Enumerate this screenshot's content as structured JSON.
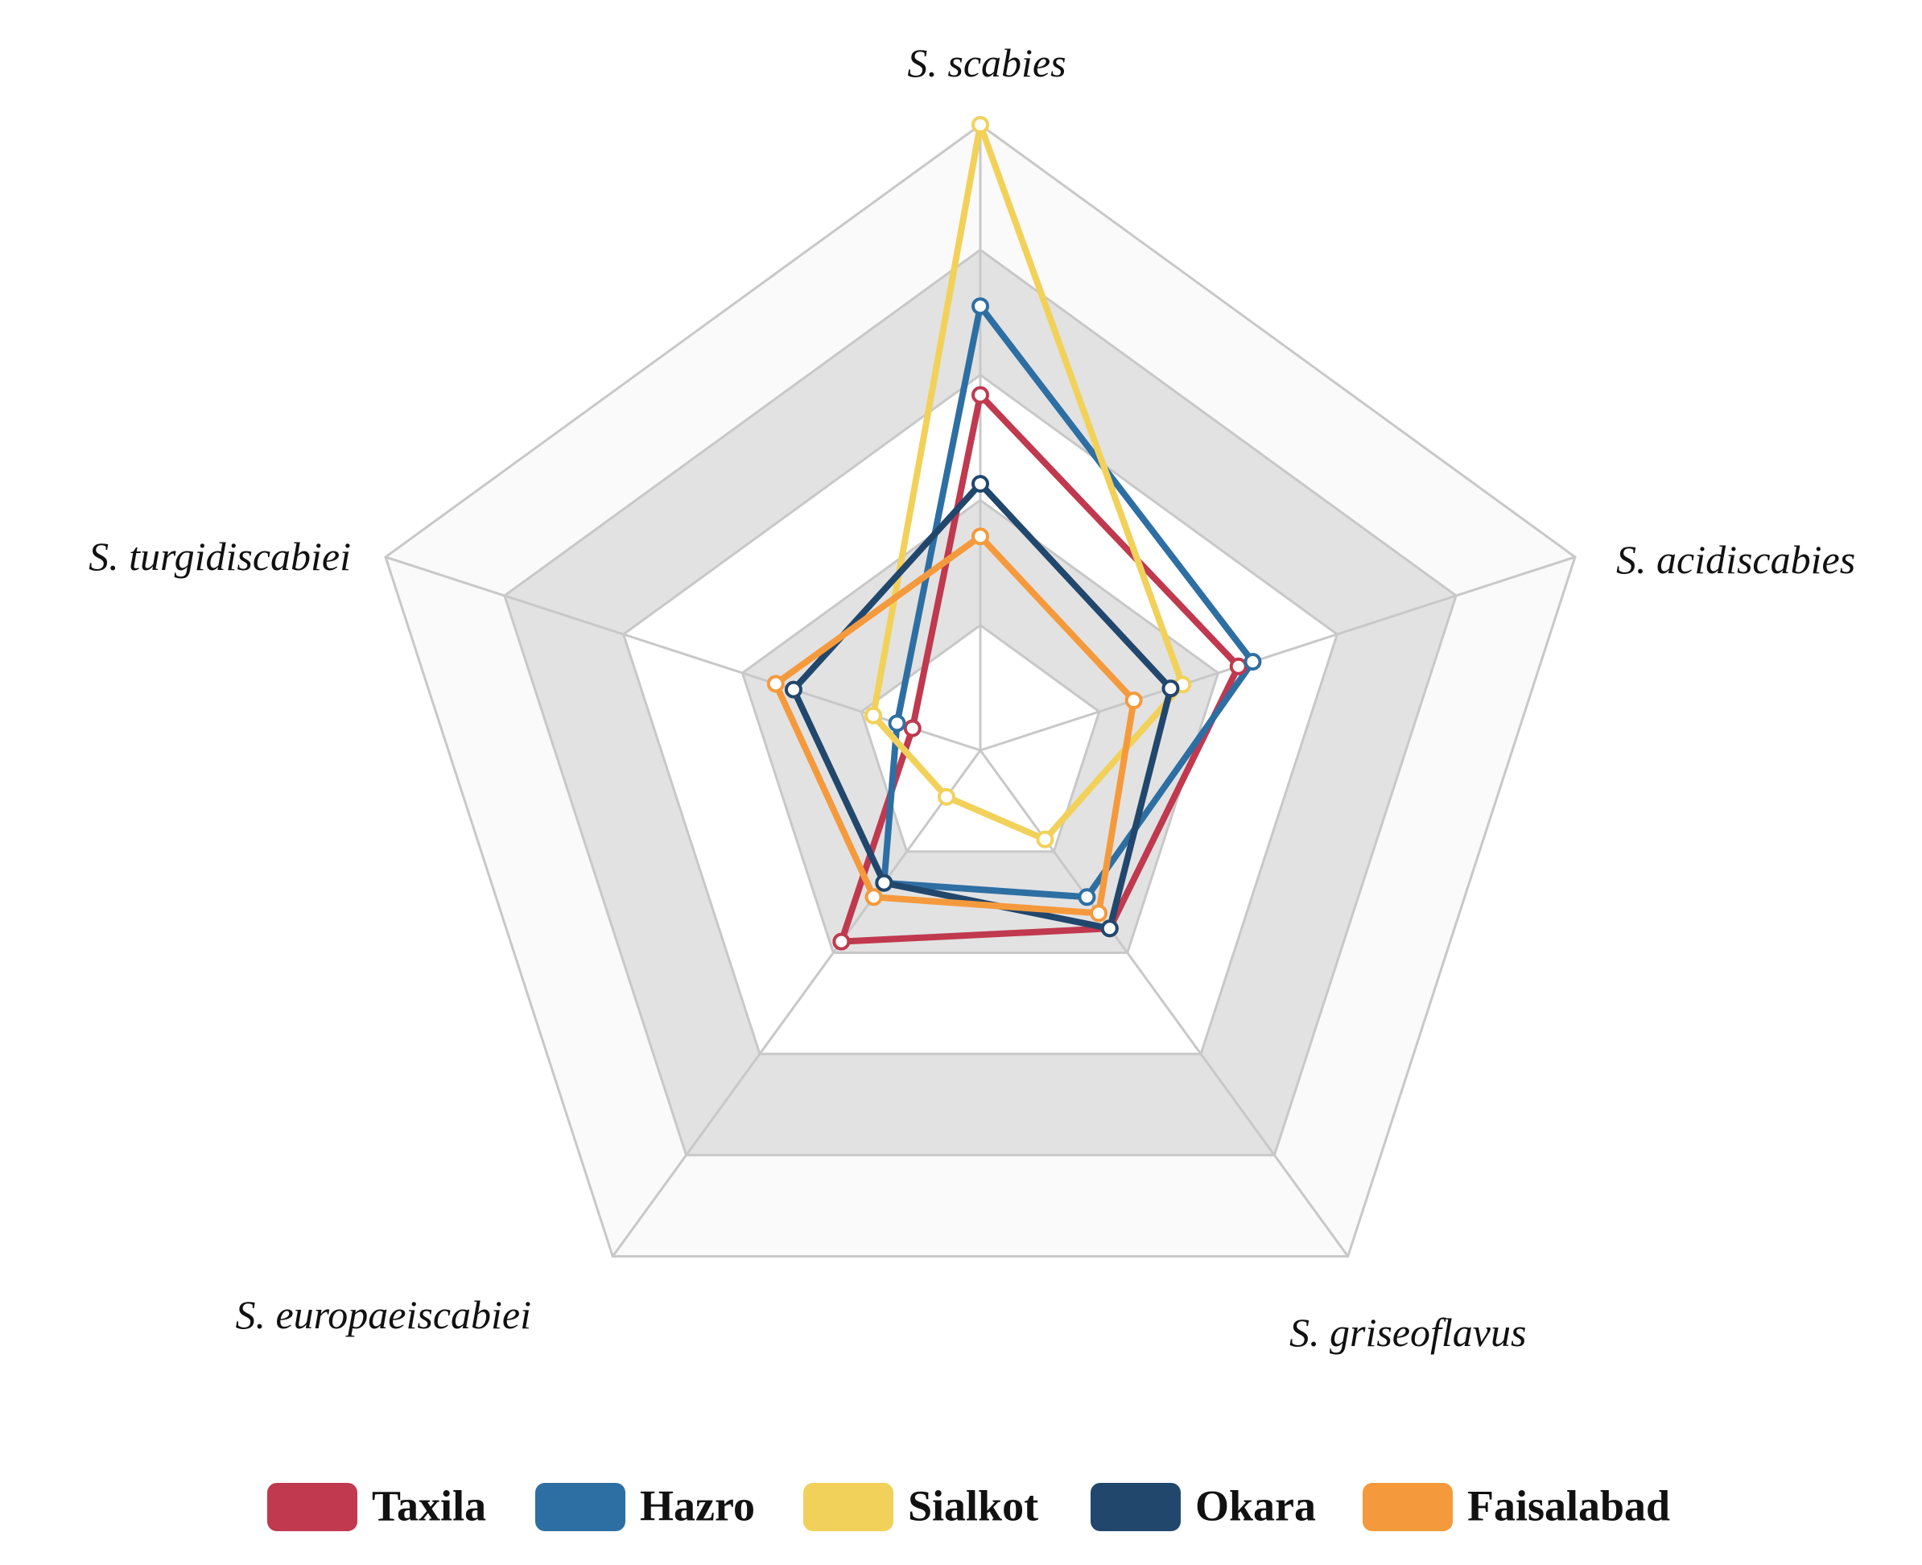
{
  "chart_data": {
    "type": "radar",
    "categories": [
      "S. scabies",
      "S. acidiscabies",
      "S. griseoflavus",
      "S. europaeiscabiei",
      "S. turgidiscabiei"
    ],
    "ylim": [
      0,
      5
    ],
    "yticks": [
      0,
      1,
      2,
      3,
      4,
      5
    ],
    "grid": true,
    "legend": "bottom",
    "series": [
      {
        "name": "Taxila",
        "color": "#c0394f",
        "values": [
          2.84,
          2.17,
          1.76,
          1.89,
          0.57
        ]
      },
      {
        "name": "Hazro",
        "color": "#2e6fa3",
        "values": [
          3.55,
          2.29,
          1.45,
          1.31,
          0.7
        ]
      },
      {
        "name": "Sialkot",
        "color": "#f2d15a",
        "values": [
          5.0,
          1.7,
          0.88,
          0.46,
          0.9
        ]
      },
      {
        "name": "Okara",
        "color": "#22476d",
        "values": [
          2.13,
          1.6,
          1.76,
          1.31,
          1.57
        ]
      },
      {
        "name": "Faisalabad",
        "color": "#f59a3c",
        "values": [
          1.71,
          1.29,
          1.61,
          1.45,
          1.72
        ]
      }
    ]
  }
}
